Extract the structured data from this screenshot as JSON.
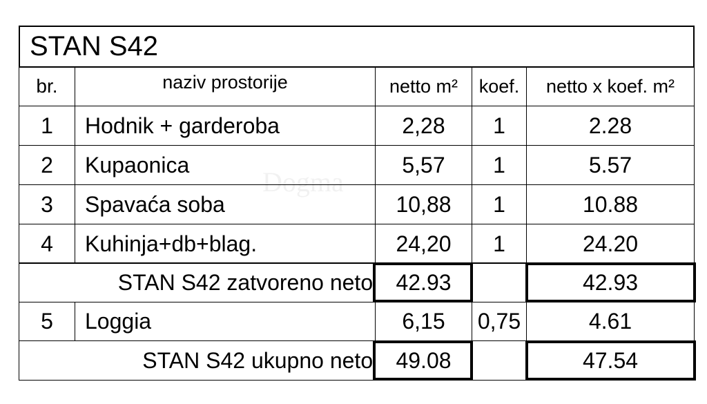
{
  "title": "STAN S42",
  "headers": {
    "br": "br.",
    "naziv": "naziv prostorije",
    "netto": "netto m²",
    "koef": "koef.",
    "netto_koef": "netto x koef. m²"
  },
  "rows": [
    {
      "br": "1",
      "naziv": "Hodnik + garderoba",
      "netto": "2,28",
      "koef": "1",
      "netto_koef": "2.28"
    },
    {
      "br": "2",
      "naziv": "Kupaonica",
      "netto": "5,57",
      "koef": "1",
      "netto_koef": "5.57"
    },
    {
      "br": "3",
      "naziv": "Spavaća soba",
      "netto": "10,88",
      "koef": "1",
      "netto_koef": "10.88"
    },
    {
      "br": "4",
      "naziv": "Kuhinja+db+blag.",
      "netto": "24,20",
      "koef": "1",
      "netto_koef": "24.20"
    }
  ],
  "subtotal": {
    "label": "STAN S42 zatvoreno neto:",
    "netto": "42.93",
    "netto_koef": "42.93"
  },
  "loggia": {
    "br": "5",
    "naziv": "Loggia",
    "netto": "6,15",
    "koef": "0,75",
    "netto_koef": "4.61"
  },
  "total": {
    "label": "STAN S42 ukupno neto:",
    "netto": "49.08",
    "netto_koef": "47.54"
  },
  "watermark": "Dogma"
}
